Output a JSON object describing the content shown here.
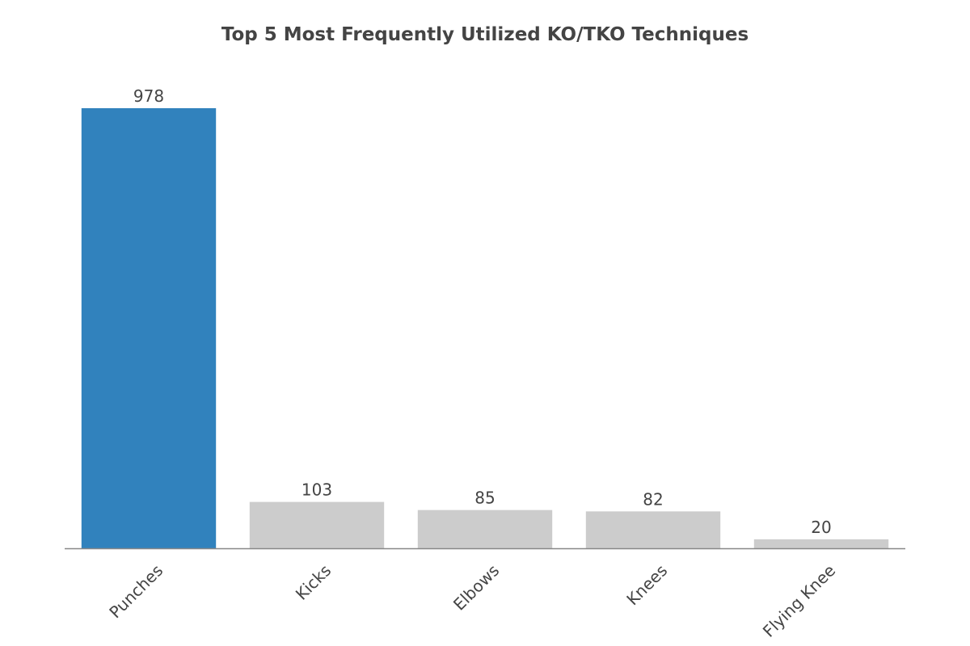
{
  "chart_data": {
    "type": "bar",
    "title": "Top 5 Most Frequently Utilized KO/TKO Techniques",
    "xlabel": "",
    "ylabel": "",
    "categories": [
      "Punches",
      "Kicks",
      "Elbows",
      "Knees",
      "Flying Knee"
    ],
    "values": [
      978,
      103,
      85,
      82,
      20
    ],
    "ylim": [
      0,
      1000
    ],
    "grid": false,
    "legend": "none",
    "colors": {
      "highlight": "#3182bd",
      "default": "#cccccc",
      "axis": "#888888",
      "text": "#444444"
    }
  }
}
